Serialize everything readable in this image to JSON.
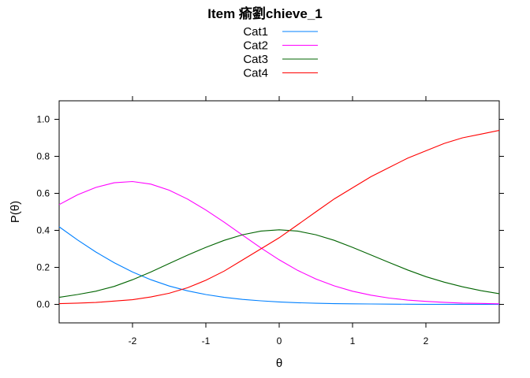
{
  "chart_data": {
    "type": "line",
    "title": "Item 瘉劉chieve_1",
    "xlabel": "θ",
    "ylabel": "P(θ)",
    "xlim": [
      -3,
      3
    ],
    "ylim": [
      -0.1,
      1.1
    ],
    "x_ticks": [
      -2,
      -1,
      0,
      1,
      2
    ],
    "x_tick_labels": [
      "-2",
      "-1",
      "0",
      "1",
      "2"
    ],
    "y_ticks": [
      0.0,
      0.2,
      0.4,
      0.6,
      0.8,
      1.0
    ],
    "y_tick_labels": [
      "0.0",
      "0.2",
      "0.4",
      "0.6",
      "0.8",
      "1.0"
    ],
    "grid": false,
    "legend_position": "top-center",
    "x": [
      -3.0,
      -2.75,
      -2.5,
      -2.25,
      -2.0,
      -1.75,
      -1.5,
      -1.25,
      -1.0,
      -0.75,
      -0.5,
      -0.25,
      0.0,
      0.25,
      0.5,
      0.75,
      1.0,
      1.25,
      1.5,
      1.75,
      2.0,
      2.25,
      2.5,
      2.75,
      3.0
    ],
    "series": [
      {
        "name": "Cat1",
        "color": "#0080ff",
        "values": [
          0.419,
          0.348,
          0.283,
          0.225,
          0.175,
          0.133,
          0.099,
          0.073,
          0.053,
          0.038,
          0.027,
          0.019,
          0.013,
          0.009,
          0.006,
          0.004,
          0.003,
          0.002,
          0.0014,
          0.0009,
          0.0006,
          0.0004,
          0.0003,
          0.0002,
          0.0001
        ]
      },
      {
        "name": "Cat2",
        "color": "#ff00ff",
        "values": [
          0.539,
          0.592,
          0.632,
          0.657,
          0.664,
          0.65,
          0.617,
          0.569,
          0.51,
          0.444,
          0.374,
          0.305,
          0.241,
          0.184,
          0.137,
          0.1,
          0.071,
          0.05,
          0.034,
          0.023,
          0.016,
          0.011,
          0.007,
          0.005,
          0.003
        ]
      },
      {
        "name": "Cat3",
        "color": "#006400",
        "values": [
          0.038,
          0.053,
          0.071,
          0.097,
          0.133,
          0.175,
          0.221,
          0.266,
          0.308,
          0.346,
          0.376,
          0.396,
          0.403,
          0.396,
          0.376,
          0.346,
          0.308,
          0.267,
          0.226,
          0.186,
          0.15,
          0.12,
          0.095,
          0.074,
          0.058
        ]
      },
      {
        "name": "Cat4",
        "color": "#ff0000",
        "values": [
          0.004,
          0.007,
          0.01,
          0.018,
          0.025,
          0.04,
          0.06,
          0.09,
          0.13,
          0.18,
          0.24,
          0.3,
          0.36,
          0.43,
          0.5,
          0.57,
          0.63,
          0.69,
          0.74,
          0.79,
          0.83,
          0.87,
          0.9,
          0.92,
          0.94
        ]
      }
    ]
  }
}
